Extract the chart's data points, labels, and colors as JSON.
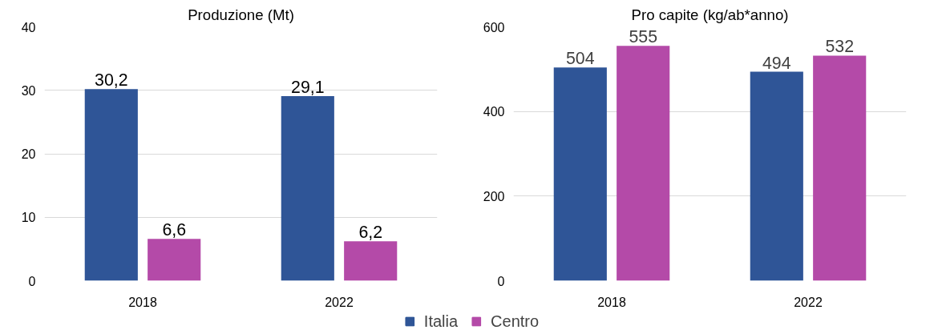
{
  "chart_data": [
    {
      "type": "bar",
      "title": "Produzione (Mt)",
      "categories": [
        "2018",
        "2022"
      ],
      "ylim": [
        0,
        40
      ],
      "yticks": [
        0,
        10,
        20,
        30,
        40
      ],
      "grid": "y",
      "legend": "bottom",
      "series": [
        {
          "name": "Italia",
          "color": "#2f5597",
          "values": [
            30.2,
            29.1
          ],
          "value_labels": [
            "30,2",
            "29,1"
          ]
        },
        {
          "name": "Centro",
          "color": "#b44aa8",
          "values": [
            6.6,
            6.2
          ],
          "value_labels": [
            "6,6",
            "6,2"
          ]
        }
      ]
    },
    {
      "type": "bar",
      "title": "Pro capite (kg/ab*anno)",
      "categories": [
        "2018",
        "2022"
      ],
      "ylim": [
        0,
        600
      ],
      "yticks": [
        0,
        200,
        400,
        600
      ],
      "grid": "y",
      "data_labels": true,
      "legend": "bottom",
      "series": [
        {
          "name": "Italia",
          "color": "#2f5597",
          "values": [
            504,
            494
          ]
        },
        {
          "name": "Centro",
          "color": "#b44aa8",
          "values": [
            555,
            532
          ]
        }
      ]
    }
  ]
}
